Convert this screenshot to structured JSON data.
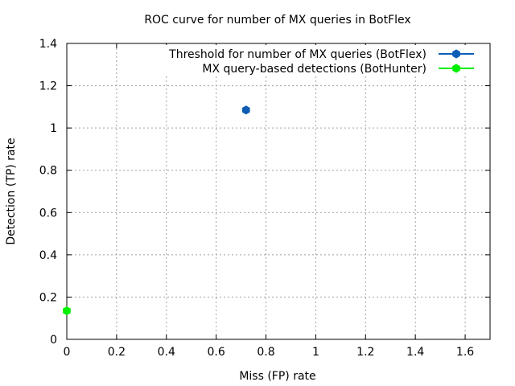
{
  "chart_data": {
    "type": "scatter",
    "title": "ROC curve for number of MX queries in BotFlex",
    "xlabel": "Miss (FP) rate",
    "ylabel": "Detection (TP) rate",
    "xlim": [
      0,
      1.7
    ],
    "ylim": [
      0,
      1.4
    ],
    "xticks": [
      0,
      0.2,
      0.4,
      0.6,
      0.8,
      1,
      1.2,
      1.4,
      1.6
    ],
    "xtick_labels": [
      "0",
      "0.2",
      "0.4",
      "0.6",
      "0.8",
      "1",
      "1.2",
      "1.4",
      "1.6"
    ],
    "yticks": [
      0,
      0.2,
      0.4,
      0.6,
      0.8,
      1,
      1.2,
      1.4
    ],
    "ytick_labels": [
      "0",
      "0.2",
      "0.4",
      "0.6",
      "0.8",
      "1",
      "1.2",
      "1.4"
    ],
    "grid": true,
    "legend_position": "top-right",
    "series": [
      {
        "name": "Threshold for number of MX queries (BotFlex)",
        "color": "#0d5db5",
        "points": [
          [
            0.72,
            1.085
          ]
        ]
      },
      {
        "name": "MX query-based detections (BotHunter)",
        "color": "#00ee00",
        "points": [
          [
            0,
            0.135
          ]
        ]
      }
    ]
  }
}
